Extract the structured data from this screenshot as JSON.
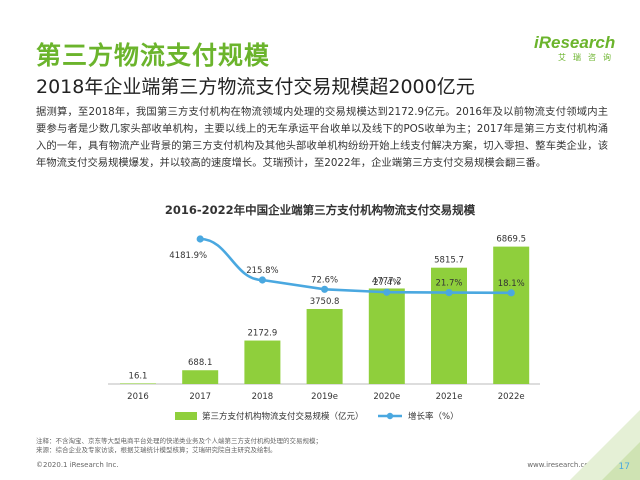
{
  "header": {
    "title": "第三方物流支付规模",
    "subtitle": "2018年企业端第三方物流支付交易规模超2000亿元"
  },
  "logo": {
    "main": "iResearch",
    "sub": "艾瑞咨询"
  },
  "body_text": "据测算，至2018年，我国第三方支付机构在物流领域内处理的交易规模达到2172.9亿元。2016年及以前物流支付领域内主要参与者是少数几家头部收单机构，主要以线上的无车承运平台收单以及线下的POS收单为主；2017年是第三方支付机构涌入的一年，具有物流产业背景的第三方支付机构及其他头部收单机构纷纷开始上线支付解决方案，切入零担、整车类企业，该年物流支付交易规模爆发，并以较高的速度增长。艾瑞预计，至2022年，企业端第三方支付交易规模会翻三番。",
  "footnote": {
    "line1": "注释：不含淘宝、京东等大型电商平台处理的快递类业务及个人端第三方支付机构处理的交易规模；",
    "line2": "来源：综合企业及专家访谈，根据艾瑞统计模型核算；艾瑞研究院自主研究及绘制。"
  },
  "footer": {
    "copyright": "©2020.1 iResearch Inc.",
    "website": "www.iresearch.com.cn",
    "page": "17"
  },
  "colors": {
    "brand_green": "#6bb42c",
    "bar_green": "#8fcf3c",
    "line_blue": "#4aa8e0"
  },
  "chart_data": {
    "type": "bar",
    "title": "2016-2022年中国企业端第三方支付机构物流支付交易规模",
    "categories": [
      "2016",
      "2017",
      "2018",
      "2019e",
      "2020e",
      "2021e",
      "2022e"
    ],
    "series": [
      {
        "name": "第三方支付机构物流支付交易规模（亿元）",
        "type": "bar",
        "values": [
          16.1,
          688.1,
          2172.9,
          3750.8,
          4777.2,
          5815.7,
          6869.5
        ],
        "labels": [
          "16.1",
          "688.1",
          "2172.9",
          "3750.8",
          "4777.2",
          "5815.7",
          "6869.5"
        ]
      },
      {
        "name": "增长率（%）",
        "type": "line",
        "values": [
          null,
          4181.9,
          215.8,
          72.6,
          27.4,
          21.7,
          18.1
        ],
        "labels": [
          "",
          "4181.9%",
          "215.8%",
          "72.6%",
          "27.4%",
          "21.7%",
          "18.1%"
        ]
      }
    ],
    "legend_position": "bottom",
    "grid": false
  }
}
